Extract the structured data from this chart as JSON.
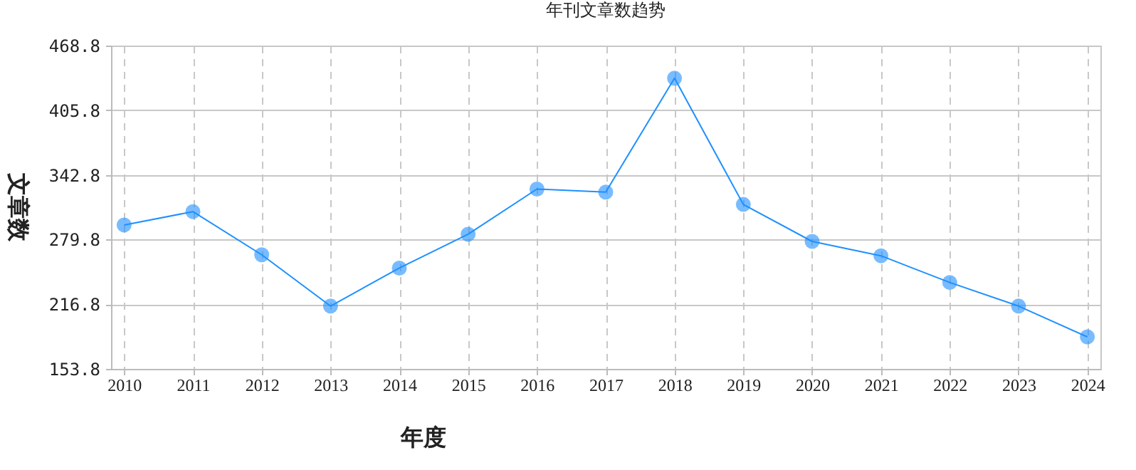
{
  "chart_data": {
    "type": "line",
    "title": "年刊文章数趋势",
    "xlabel": "年度",
    "ylabel": "文章数",
    "categories": [
      "2010",
      "2011",
      "2012",
      "2013",
      "2014",
      "2015",
      "2016",
      "2017",
      "2018",
      "2019",
      "2020",
      "2021",
      "2022",
      "2023",
      "2024"
    ],
    "series": [
      {
        "color": "#1e90ff",
        "values": [
          294,
          307,
          265,
          215,
          252,
          285,
          329,
          326,
          437,
          314,
          278,
          264,
          238,
          215,
          185
        ]
      }
    ],
    "ylim": [
      153.8,
      468.8
    ],
    "yticks": [
      153.8,
      216.8,
      279.8,
      342.8,
      405.8,
      468.8
    ],
    "grid": true,
    "marker": "circle",
    "line_style": "solid",
    "legend": false
  }
}
